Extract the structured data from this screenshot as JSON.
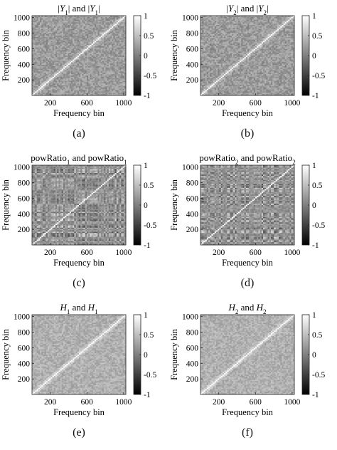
{
  "figure": {
    "panels": [
      {
        "caption": "(a)",
        "title_plain": "|Y1| and |Y1|",
        "title_parts": [
          {
            "t": "|"
          },
          {
            "t": "Y",
            "i": true
          },
          {
            "t": "1",
            "sub": true
          },
          {
            "t": "| and  |"
          },
          {
            "t": "Y",
            "i": true
          },
          {
            "t": "1",
            "sub": true
          },
          {
            "t": "|"
          }
        ],
        "style": "smooth",
        "cb_frac_digits": "0.5"
      },
      {
        "caption": "(b)",
        "title_plain": "|Y2| and |Y2|",
        "title_parts": [
          {
            "t": "|"
          },
          {
            "t": "Y",
            "i": true
          },
          {
            "t": "2",
            "sub": true
          },
          {
            "t": "| and  |"
          },
          {
            "t": "Y",
            "i": true
          },
          {
            "t": "2",
            "sub": true
          },
          {
            "t": "|"
          }
        ],
        "style": "smooth",
        "cb_frac_digits": "0.5"
      },
      {
        "caption": "(c)",
        "title_plain": "powRatio1 and powRatio1",
        "title_parts": [
          {
            "t": "powRatio"
          },
          {
            "t": "1",
            "sub": true
          },
          {
            "t": " and powRatio"
          },
          {
            "t": "1",
            "sub": true
          }
        ],
        "style": "stripes",
        "cb_frac_digits": "0.5"
      },
      {
        "caption": "(d)",
        "title_plain": "powRatio2 and powRatio2",
        "title_parts": [
          {
            "t": "powRatio"
          },
          {
            "t": "2",
            "sub": true
          },
          {
            "t": " and powRatio"
          },
          {
            "t": "2",
            "sub": true
          }
        ],
        "style": "stripes",
        "cb_frac_digits": "0.5"
      },
      {
        "caption": "(e)",
        "title_plain": "H1 and H1",
        "title_parts": [
          {
            "t": "H",
            "i": true
          },
          {
            "t": "1",
            "sub": true
          },
          {
            "t": " and  "
          },
          {
            "t": "H",
            "i": true
          },
          {
            "t": "1",
            "sub": true
          }
        ],
        "style": "light",
        "cb_frac_digits": "0.5"
      },
      {
        "caption": "(f)",
        "title_plain": "H2 and H2",
        "title_parts": [
          {
            "t": "H",
            "i": true
          },
          {
            "t": "2",
            "sub": true
          },
          {
            "t": " and  "
          },
          {
            "t": "H",
            "i": true
          },
          {
            "t": "2",
            "sub": true
          }
        ],
        "style": "light",
        "cb_frac_digits": "0.5"
      }
    ]
  },
  "chart_data": [
    {
      "type": "heatmap",
      "title": "|Y1| and |Y1|",
      "xlabel": "Frequency bin",
      "ylabel": "Frequency bin",
      "xticks": [
        200,
        600,
        1000
      ],
      "yticks": [
        200,
        400,
        600,
        800,
        1000
      ],
      "xlim": [
        1,
        1024
      ],
      "ylim": [
        1,
        1024
      ],
      "colorbar": {
        "ticks": [
          -1,
          -0.5,
          0,
          0.5,
          1
        ],
        "tick_labels": [
          "-1",
          "-0.5",
          "0",
          "0.5",
          "1"
        ],
        "range": [
          -1,
          1
        ],
        "colormap": "gray"
      },
      "diagonal_value": 1
    },
    {
      "type": "heatmap",
      "title": "|Y2| and |Y2|",
      "xlabel": "Frequency bin",
      "ylabel": "Frequency bin",
      "xticks": [
        200,
        600,
        1000
      ],
      "yticks": [
        200,
        400,
        600,
        800,
        1000
      ],
      "xlim": [
        1,
        1024
      ],
      "ylim": [
        1,
        1024
      ],
      "colorbar": {
        "ticks": [
          -1,
          -0.5,
          0,
          0.5,
          1
        ],
        "tick_labels": [
          "-1",
          "-0.5",
          "0",
          "0.5",
          "1"
        ],
        "range": [
          -1,
          1
        ],
        "colormap": "gray"
      },
      "diagonal_value": 1
    },
    {
      "type": "heatmap",
      "title": "powRatio1 and powRatio1",
      "xlabel": "Frequency bin",
      "ylabel": "Frequency bin",
      "xticks": [
        200,
        600,
        1000
      ],
      "yticks": [
        200,
        400,
        600,
        800,
        1000
      ],
      "xlim": [
        1,
        1024
      ],
      "ylim": [
        1,
        1024
      ],
      "colorbar": {
        "ticks": [
          -1,
          -0.5,
          0,
          0.5,
          1
        ],
        "tick_labels": [
          "-1",
          "-0.5",
          "0",
          "0.5",
          "1"
        ],
        "range": [
          -1,
          1
        ],
        "colormap": "gray"
      },
      "diagonal_value": 1
    },
    {
      "type": "heatmap",
      "title": "powRatio2 and powRatio2",
      "xlabel": "Frequency bin",
      "ylabel": "Frequency bin",
      "xticks": [
        200,
        600,
        1000
      ],
      "yticks": [
        200,
        400,
        600,
        800,
        1000
      ],
      "xlim": [
        1,
        1024
      ],
      "ylim": [
        1,
        1024
      ],
      "colorbar": {
        "ticks": [
          -1,
          -0.5,
          0,
          0.5,
          1
        ],
        "tick_labels": [
          "-1",
          "-0.5",
          "0",
          "0.5",
          "1"
        ],
        "range": [
          -1,
          1
        ],
        "colormap": "gray"
      },
      "diagonal_value": 1
    },
    {
      "type": "heatmap",
      "title": "H1 and H1",
      "xlabel": "Frequency bin",
      "ylabel": "Frequency bin",
      "xticks": [
        200,
        600,
        1000
      ],
      "yticks": [
        200,
        400,
        600,
        800,
        1000
      ],
      "xlim": [
        1,
        1024
      ],
      "ylim": [
        1,
        1024
      ],
      "colorbar": {
        "ticks": [
          -1,
          -0.5,
          0,
          0.5,
          1
        ],
        "tick_labels": [
          "-1",
          "-0.5",
          "0",
          "0.5",
          "1"
        ],
        "range": [
          -1,
          1
        ],
        "colormap": "gray"
      },
      "diagonal_value": 1
    },
    {
      "type": "heatmap",
      "title": "H2 and H2",
      "xlabel": "Frequency bin",
      "ylabel": "Frequency bin",
      "xticks": [
        200,
        600,
        1000
      ],
      "yticks": [
        200,
        400,
        600,
        800,
        1000
      ],
      "xlim": [
        1,
        1024
      ],
      "ylim": [
        1,
        1024
      ],
      "colorbar": {
        "ticks": [
          -1,
          -0.5,
          0,
          0.5,
          1
        ],
        "tick_labels": [
          "-1",
          "-0.5",
          "0",
          "0.5",
          "1"
        ],
        "range": [
          -1,
          1
        ],
        "colormap": "gray"
      },
      "diagonal_value": 1
    }
  ]
}
